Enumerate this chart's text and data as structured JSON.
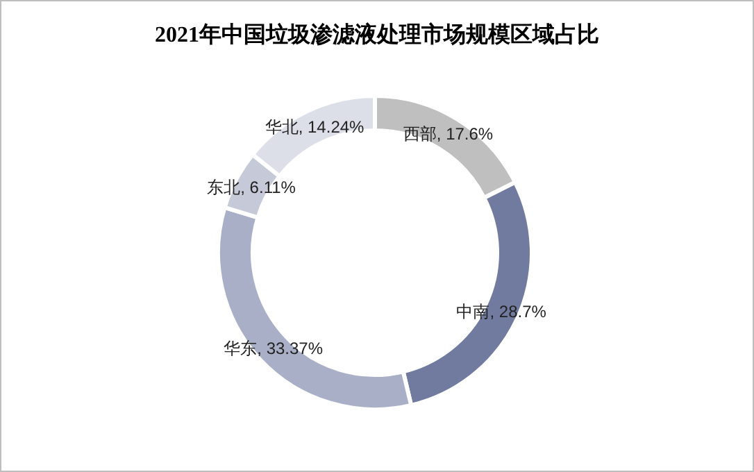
{
  "chart_data": {
    "type": "donut",
    "title": "2021年中国垃圾渗滤液处理市场规模区域占比",
    "categories": [
      "西部",
      "中南",
      "华东",
      "东北",
      "华北"
    ],
    "values": [
      17.6,
      28.7,
      33.37,
      6.11,
      14.24
    ],
    "colors": [
      "#bfbfbf",
      "#707b9f",
      "#a9afc7",
      "#c5c9d8",
      "#dcdfe8"
    ],
    "value_labels": [
      ", 17.6%",
      ", 28.7%",
      ", 33.37%",
      ", 6.11%",
      ", 14.24%"
    ]
  }
}
